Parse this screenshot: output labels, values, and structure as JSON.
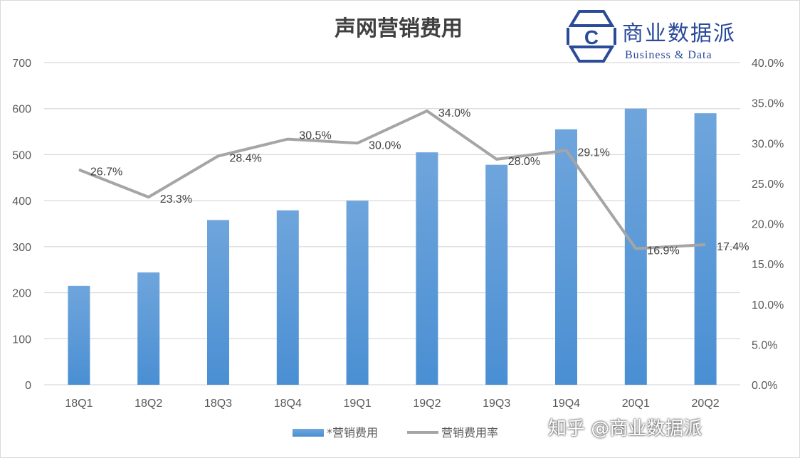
{
  "chart_data": {
    "type": "bar+line",
    "title": "声网营销费用",
    "categories": [
      "18Q1",
      "18Q2",
      "18Q3",
      "18Q4",
      "19Q1",
      "19Q2",
      "19Q3",
      "19Q4",
      "20Q1",
      "20Q2"
    ],
    "series": [
      {
        "name": "*营销费用",
        "type": "bar",
        "axis": "left",
        "color": "#5b9bd5",
        "values": [
          215,
          244,
          358,
          379,
          400,
          505,
          478,
          555,
          600,
          590
        ]
      },
      {
        "name": "营销费用率",
        "type": "line",
        "axis": "right",
        "color": "#a5a5a5",
        "values": [
          26.7,
          23.3,
          28.4,
          30.5,
          30.0,
          34.0,
          28.0,
          29.1,
          16.9,
          17.4
        ],
        "labels": [
          "26.7%",
          "23.3%",
          "28.4%",
          "30.5%",
          "30.0%",
          "34.0%",
          "28.0%",
          "29.1%",
          "16.9%",
          "17.4%"
        ]
      }
    ],
    "ylim": [
      0,
      700
    ],
    "yticks": [
      "0",
      "100",
      "200",
      "300",
      "400",
      "500",
      "600",
      "700"
    ],
    "y2lim": [
      0,
      40
    ],
    "y2ticks": [
      "0.0%",
      "5.0%",
      "10.0%",
      "15.0%",
      "20.0%",
      "25.0%",
      "30.0%",
      "35.0%",
      "40.0%"
    ],
    "grid": true,
    "legend": "bottom"
  },
  "logo": {
    "cn": "商业数据派",
    "en": "Business & Data",
    "mark": "C"
  },
  "watermark": "知乎 @商业数据派"
}
